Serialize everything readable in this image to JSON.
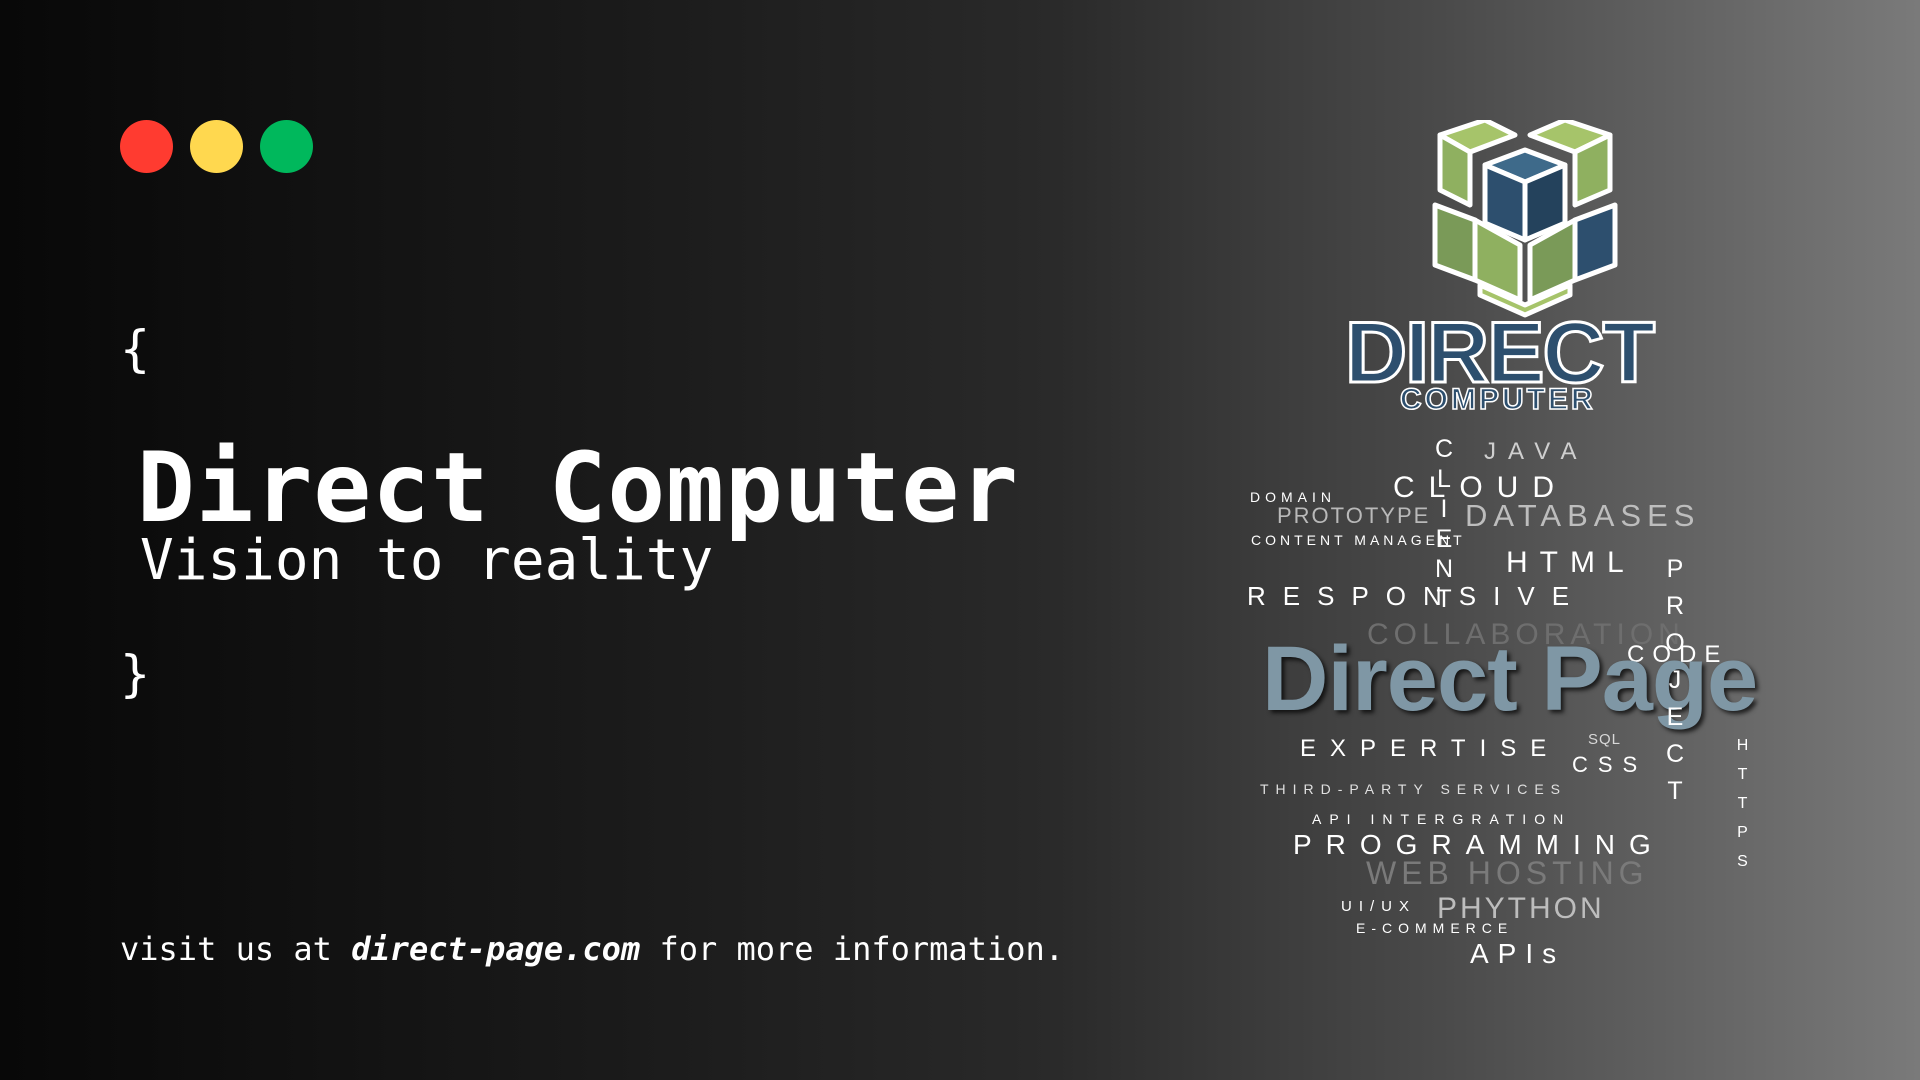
{
  "window_controls": {
    "close_color": "#ff3b30",
    "minimize_color": "#ffd84f",
    "maximize_color": "#00b85c"
  },
  "code": {
    "open_brace": "{",
    "close_brace": "}",
    "title": "Direct Computer",
    "subtitle": "Vision to reality"
  },
  "footer": {
    "prefix": "visit us at ",
    "link": "direct-page.com",
    "suffix": " for more information."
  },
  "logo": {
    "brand": "DIRECT",
    "sub": "COMPUTER",
    "icon": "cube-logo-icon",
    "colors": {
      "green_light": "#a6c46a",
      "green_dark": "#7a9a58",
      "blue": "#2d4f6e",
      "outline": "#ffffff"
    }
  },
  "word_cloud": {
    "main": "Direct Page",
    "words": [
      "JAVA",
      "CLOUD",
      "DOMAIN",
      "PROTOTYPE",
      "DATABASES",
      "CONTENT MANAGENT",
      "HTML",
      "RESPONSIVE",
      "COLLABORATION",
      "CODE",
      "EXPERTISE",
      "SQL",
      "CSS",
      "THIRD-PARTY SERVICES",
      "API INTERGRATION",
      "PROGRAMMING",
      "WEB HOSTING",
      "UI/UX",
      "PHYTHON",
      "E-COMMERCE",
      "APIs"
    ],
    "vertical_words": [
      "CLIENT",
      "PROJECT",
      "HTTPS"
    ]
  }
}
